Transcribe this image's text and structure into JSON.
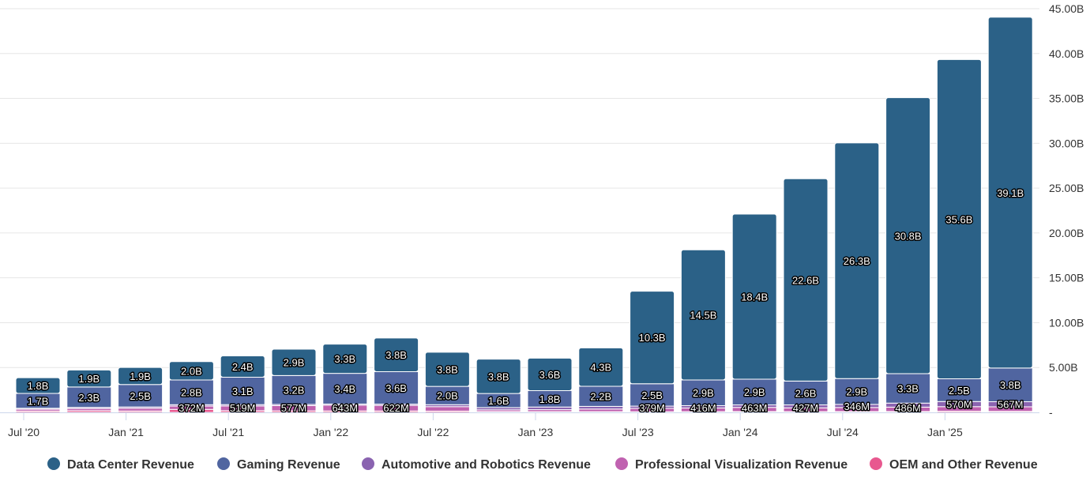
{
  "chart_data": {
    "type": "bar",
    "stacked": true,
    "title": "",
    "xlabel": "",
    "ylabel": "",
    "ylim": [
      0,
      45
    ],
    "y_ticks": [
      "-",
      "5.00B",
      "10.00B",
      "15.00B",
      "20.00B",
      "25.00B",
      "30.00B",
      "35.00B",
      "40.00B",
      "45.00B"
    ],
    "y_unit": "billions",
    "y_axis_side": "right",
    "grid": true,
    "legend_placement": "bottom",
    "x_tick_labels": [
      "Jul '20",
      "Jan '21",
      "Jul '21",
      "Jan '22",
      "Jul '22",
      "Jan '23",
      "Jul '23",
      "Jan '24",
      "Jul '24",
      "Jan '25"
    ],
    "categories": [
      "Jul '20",
      "Oct '20",
      "Jan '21",
      "Apr '21",
      "Jul '21",
      "Oct '21",
      "Jan '22",
      "Apr '22",
      "Jul '22",
      "Oct '22",
      "Jan '23",
      "Apr '23",
      "Jul '23",
      "Oct '23",
      "Jan '24",
      "Apr '24",
      "Jul '24",
      "Oct '24",
      "Jan '25",
      "Apr '25"
    ],
    "series": [
      {
        "name": "Data Center Revenue",
        "color": "#2b6187",
        "values": [
          1.75,
          1.9,
          1.9,
          2.05,
          2.37,
          2.94,
          3.26,
          3.75,
          3.81,
          3.83,
          3.62,
          4.28,
          10.32,
          14.51,
          18.4,
          22.56,
          26.27,
          30.77,
          35.58,
          39.11
        ],
        "labels": [
          "1.8B",
          "1.9B",
          "1.9B",
          "2.0B",
          "2.4B",
          "2.9B",
          "3.3B",
          "3.8B",
          "3.8B",
          "3.8B",
          "3.6B",
          "4.3B",
          "10.3B",
          "14.5B",
          "18.4B",
          "22.6B",
          "26.3B",
          "30.8B",
          "35.6B",
          "39.1B"
        ]
      },
      {
        "name": "Gaming Revenue",
        "color": "#5065a0",
        "values": [
          1.65,
          2.27,
          2.5,
          2.76,
          3.06,
          3.22,
          3.42,
          3.62,
          2.04,
          1.57,
          1.83,
          2.24,
          2.49,
          2.86,
          2.87,
          2.65,
          2.88,
          3.28,
          2.54,
          3.76
        ],
        "labels": [
          "1.7B",
          "2.3B",
          "2.5B",
          "2.8B",
          "3.1B",
          "3.2B",
          "3.4B",
          "3.6B",
          "2.0B",
          "1.6B",
          "1.8B",
          "2.2B",
          "2.5B",
          "2.9B",
          "2.9B",
          "2.6B",
          "2.9B",
          "3.3B",
          "2.5B",
          "3.8B"
        ]
      },
      {
        "name": "Automotive and Robotics Revenue",
        "color": "#8a63b0",
        "values": [
          0.111,
          0.125,
          0.145,
          0.154,
          0.152,
          0.135,
          0.125,
          0.138,
          0.22,
          0.251,
          0.294,
          0.296,
          0.253,
          0.261,
          0.281,
          0.329,
          0.346,
          0.449,
          0.57,
          0.567
        ],
        "labels": [
          null,
          null,
          null,
          null,
          null,
          null,
          null,
          null,
          null,
          null,
          null,
          null,
          null,
          null,
          null,
          null,
          "346M",
          null,
          "570M",
          "567M"
        ]
      },
      {
        "name": "Professional Visualization Revenue",
        "color": "#c062b0",
        "values": [
          0.203,
          0.236,
          0.307,
          0.372,
          0.519,
          0.577,
          0.643,
          0.622,
          0.496,
          0.2,
          0.226,
          0.295,
          0.379,
          0.416,
          0.463,
          0.427,
          0.454,
          0.486,
          0.511,
          0.509
        ],
        "labels": [
          null,
          null,
          null,
          "372M",
          "519M",
          "577M",
          "643M",
          "622M",
          null,
          null,
          null,
          null,
          "379M",
          "416M",
          "463M",
          "427M",
          null,
          "486M",
          null,
          null
        ]
      },
      {
        "name": "OEM and Other Revenue",
        "color": "#e8588f",
        "values": [
          0.146,
          0.194,
          0.153,
          0.327,
          0.192,
          0.174,
          0.161,
          0.158,
          0.14,
          0.084,
          0.076,
          0.077,
          0.066,
          0.073,
          0.09,
          0.078,
          0.088,
          0.097,
          0.126,
          0.111
        ],
        "labels": [
          null,
          null,
          null,
          null,
          null,
          null,
          null,
          null,
          null,
          null,
          null,
          null,
          null,
          null,
          null,
          null,
          null,
          null,
          null,
          null
        ]
      }
    ]
  }
}
